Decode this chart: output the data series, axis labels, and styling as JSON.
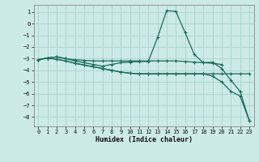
{
  "bg_color": "#cceae6",
  "grid_color": "#aad4d0",
  "line_color": "#1a6b5a",
  "xlabel": "Humidex (Indice chaleur)",
  "ylim": [
    -8.8,
    1.6
  ],
  "xlim": [
    -0.5,
    23.5
  ],
  "yticks": [
    1,
    0,
    -1,
    -2,
    -3,
    -4,
    -5,
    -6,
    -7,
    -8
  ],
  "xticks": [
    0,
    1,
    2,
    3,
    4,
    5,
    6,
    7,
    8,
    9,
    10,
    11,
    12,
    13,
    14,
    15,
    16,
    17,
    18,
    19,
    20,
    21,
    22,
    23
  ],
  "line1_x": [
    0,
    1,
    2,
    3,
    4,
    5,
    6,
    7,
    8,
    9,
    10,
    11,
    12,
    13,
    14,
    15,
    16,
    17,
    18,
    19,
    20
  ],
  "line1_y": [
    -3.1,
    -2.95,
    -2.85,
    -3.0,
    -3.1,
    -3.15,
    -3.2,
    -3.2,
    -3.2,
    -3.2,
    -3.2,
    -3.2,
    -3.2,
    -3.2,
    -3.2,
    -3.2,
    -3.25,
    -3.3,
    -3.35,
    -3.4,
    -3.5
  ],
  "line2_x": [
    0,
    1,
    2,
    3,
    4,
    5,
    6,
    7,
    8,
    9,
    10,
    11,
    12,
    13,
    14,
    15,
    16,
    17,
    18,
    19,
    20,
    21,
    22,
    23
  ],
  "line2_y": [
    -3.1,
    -2.95,
    -2.85,
    -3.0,
    -3.2,
    -3.35,
    -3.5,
    -3.65,
    -3.5,
    -3.35,
    -3.3,
    -3.25,
    -3.25,
    -1.2,
    1.1,
    1.05,
    -0.75,
    -2.65,
    -3.35,
    -3.3,
    -3.85,
    -4.85,
    -5.8,
    -8.3
  ],
  "line3_x": [
    0,
    1,
    2,
    3,
    4,
    5,
    6,
    7,
    8,
    9,
    10,
    11,
    12,
    13,
    14,
    15,
    16,
    17,
    18,
    19,
    20,
    21,
    22,
    23
  ],
  "line3_y": [
    -3.1,
    -2.95,
    -3.05,
    -3.2,
    -3.4,
    -3.55,
    -3.7,
    -3.85,
    -4.0,
    -4.15,
    -4.25,
    -4.3,
    -4.3,
    -4.3,
    -4.3,
    -4.3,
    -4.3,
    -4.3,
    -4.3,
    -4.3,
    -4.3,
    -4.3,
    -4.3,
    -4.3
  ],
  "line4_x": [
    0,
    1,
    2,
    3,
    4,
    5,
    6,
    7,
    8,
    9,
    10,
    11,
    12,
    13,
    14,
    15,
    16,
    17,
    18,
    19,
    20,
    21,
    22,
    23
  ],
  "line4_y": [
    -3.1,
    -2.95,
    -3.05,
    -3.2,
    -3.4,
    -3.55,
    -3.7,
    -3.85,
    -4.0,
    -4.15,
    -4.25,
    -4.3,
    -4.3,
    -4.3,
    -4.3,
    -4.3,
    -4.3,
    -4.3,
    -4.3,
    -4.5,
    -5.0,
    -5.8,
    -6.2,
    -8.3
  ]
}
